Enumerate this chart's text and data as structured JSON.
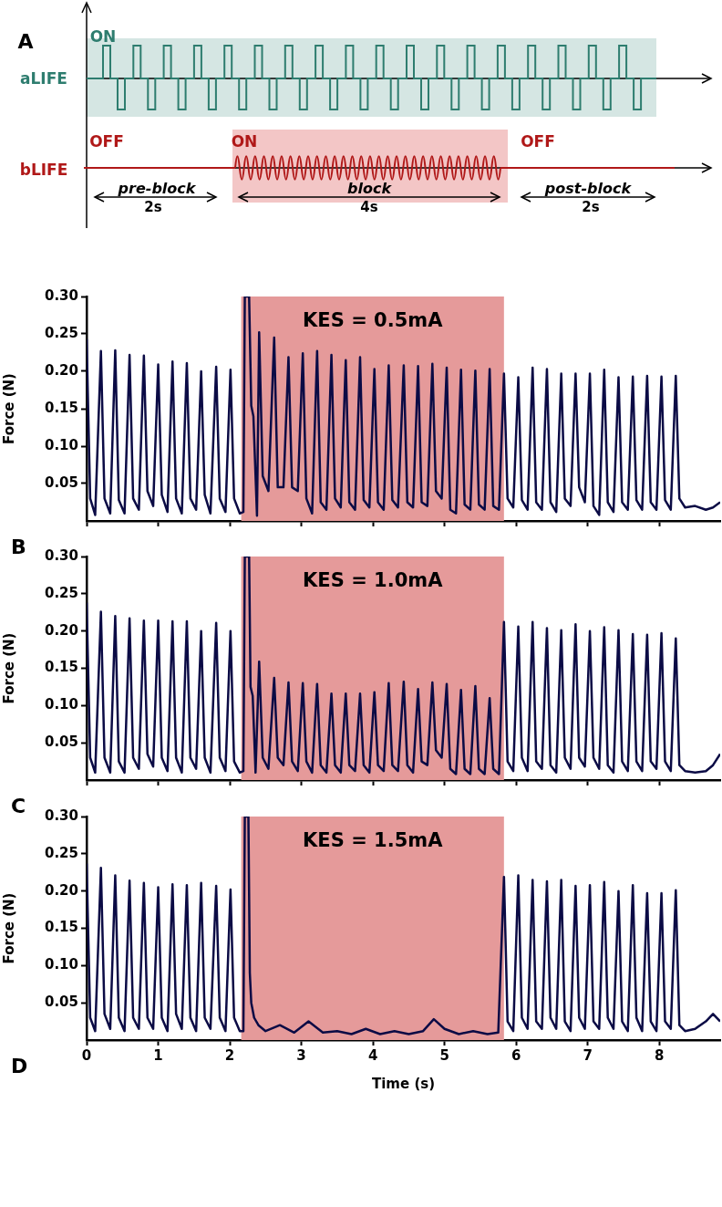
{
  "chart_data": [
    {
      "type": "other",
      "title": "A",
      "annotations": [
        "ON",
        "aLIFE",
        "OFF",
        "ON",
        "OFF",
        "bLIFE",
        "pre-block",
        "2s",
        "block",
        "4s",
        "post-block",
        "2s"
      ]
    },
    {
      "type": "line",
      "title": "B",
      "ylabel": "Force (N)",
      "xlim": [
        0,
        8.85
      ],
      "xticks": [
        0,
        1,
        2,
        3,
        4,
        5,
        6,
        7,
        8
      ],
      "ylim": [
        0,
        0.3
      ],
      "yticks": [
        0.05,
        {
          "value": 0.1,
          "label": "0.10"
        },
        0.15,
        {
          "value": 0.2,
          "label": "0.20"
        },
        0.25,
        {
          "value": 0.3,
          "label": "0.30"
        }
      ],
      "tick_labels": "y",
      "grid": false,
      "legend": false,
      "bands": [
        {
          "axis": "x",
          "from": 2.16,
          "to": 5.83,
          "label": "KES = 0.5mA",
          "color": "#e59a9a"
        }
      ],
      "series": [
        {
          "color": "#0b0b45",
          "x": [
            0,
            0.05,
            0.12,
            0.2,
            0.25,
            0.33,
            0.4,
            0.45,
            0.53,
            0.6,
            0.65,
            0.73,
            0.8,
            0.85,
            0.93,
            1.0,
            1.05,
            1.13,
            1.2,
            1.25,
            1.33,
            1.4,
            1.45,
            1.53,
            1.6,
            1.65,
            1.73,
            1.81,
            1.86,
            1.94,
            2.01,
            2.06,
            2.14,
            2.19,
            2.21,
            2.27,
            2.3,
            2.33,
            2.38,
            2.41,
            2.46,
            2.54,
            2.62,
            2.67,
            2.75,
            2.82,
            2.87,
            2.95,
            3.02,
            3.07,
            3.15,
            3.22,
            3.27,
            3.35,
            3.42,
            3.47,
            3.55,
            3.62,
            3.67,
            3.75,
            3.82,
            3.87,
            3.95,
            4.02,
            4.07,
            4.15,
            4.22,
            4.27,
            4.35,
            4.43,
            4.48,
            4.56,
            4.63,
            4.68,
            4.76,
            4.83,
            4.88,
            4.96,
            5.03,
            5.08,
            5.16,
            5.23,
            5.28,
            5.36,
            5.43,
            5.48,
            5.56,
            5.63,
            5.68,
            5.76,
            5.83,
            5.88,
            5.96,
            6.03,
            6.08,
            6.16,
            6.23,
            6.28,
            6.36,
            6.43,
            6.48,
            6.56,
            6.63,
            6.68,
            6.76,
            6.83,
            6.88,
            6.96,
            7.03,
            7.08,
            7.16,
            7.23,
            7.28,
            7.36,
            7.43,
            7.48,
            7.56,
            7.63,
            7.68,
            7.76,
            7.83,
            7.88,
            7.96,
            8.03,
            8.08,
            8.16,
            8.23,
            8.28,
            8.36,
            8.5,
            8.65,
            8.75,
            8.85
          ],
          "values": [
            0.243,
            0.03,
            0.008,
            0.227,
            0.03,
            0.01,
            0.228,
            0.028,
            0.01,
            0.222,
            0.03,
            0.015,
            0.221,
            0.04,
            0.02,
            0.209,
            0.035,
            0.012,
            0.213,
            0.03,
            0.01,
            0.211,
            0.03,
            0.015,
            0.2,
            0.035,
            0.01,
            0.206,
            0.03,
            0.012,
            0.202,
            0.03,
            0.01,
            0.012,
            0.3,
            0.3,
            0.154,
            0.14,
            0.007,
            0.252,
            0.06,
            0.04,
            0.245,
            0.045,
            0.045,
            0.219,
            0.045,
            0.04,
            0.224,
            0.03,
            0.01,
            0.227,
            0.025,
            0.015,
            0.222,
            0.03,
            0.018,
            0.215,
            0.025,
            0.015,
            0.219,
            0.028,
            0.018,
            0.203,
            0.025,
            0.015,
            0.208,
            0.028,
            0.018,
            0.208,
            0.025,
            0.018,
            0.207,
            0.025,
            0.02,
            0.21,
            0.04,
            0.03,
            0.205,
            0.015,
            0.01,
            0.202,
            0.022,
            0.015,
            0.201,
            0.022,
            0.015,
            0.203,
            0.02,
            0.015,
            0.197,
            0.03,
            0.018,
            0.192,
            0.028,
            0.015,
            0.205,
            0.025,
            0.015,
            0.203,
            0.025,
            0.012,
            0.197,
            0.03,
            0.02,
            0.197,
            0.045,
            0.025,
            0.197,
            0.02,
            0.008,
            0.202,
            0.025,
            0.012,
            0.192,
            0.025,
            0.015,
            0.193,
            0.028,
            0.015,
            0.194,
            0.025,
            0.015,
            0.193,
            0.028,
            0.015,
            0.194,
            0.03,
            0.018,
            0.02,
            0.015,
            0.018,
            0.025
          ]
        }
      ]
    },
    {
      "type": "line",
      "title": "C",
      "ylabel": "Force (N)",
      "xlim": [
        0,
        8.85
      ],
      "xticks": [
        0,
        1,
        2,
        3,
        4,
        5,
        6,
        7,
        8
      ],
      "ylim": [
        0,
        0.3
      ],
      "yticks": [
        0.05,
        {
          "value": 0.1,
          "label": "0.10"
        },
        0.15,
        {
          "value": 0.2,
          "label": "0.20"
        },
        0.25,
        {
          "value": 0.3,
          "label": "0.30"
        }
      ],
      "tick_labels": "y",
      "grid": false,
      "legend": false,
      "bands": [
        {
          "axis": "x",
          "from": 2.16,
          "to": 5.83,
          "label": "KES = 1.0mA",
          "color": "#e59a9a"
        }
      ],
      "series": [
        {
          "color": "#0b0b45",
          "x": [
            0,
            0.05,
            0.12,
            0.2,
            0.25,
            0.33,
            0.4,
            0.45,
            0.53,
            0.6,
            0.65,
            0.73,
            0.8,
            0.85,
            0.93,
            1.0,
            1.05,
            1.13,
            1.2,
            1.25,
            1.33,
            1.4,
            1.45,
            1.53,
            1.6,
            1.65,
            1.73,
            1.81,
            1.86,
            1.94,
            2.01,
            2.06,
            2.14,
            2.19,
            2.21,
            2.27,
            2.29,
            2.32,
            2.36,
            2.41,
            2.46,
            2.54,
            2.62,
            2.67,
            2.75,
            2.82,
            2.87,
            2.95,
            3.02,
            3.07,
            3.15,
            3.22,
            3.27,
            3.35,
            3.42,
            3.47,
            3.55,
            3.62,
            3.67,
            3.75,
            3.82,
            3.87,
            3.95,
            4.02,
            4.07,
            4.15,
            4.22,
            4.27,
            4.35,
            4.43,
            4.48,
            4.56,
            4.63,
            4.68,
            4.76,
            4.83,
            4.88,
            4.96,
            5.03,
            5.08,
            5.16,
            5.23,
            5.28,
            5.36,
            5.43,
            5.48,
            5.56,
            5.63,
            5.68,
            5.76,
            5.83,
            5.88,
            5.96,
            6.03,
            6.08,
            6.16,
            6.23,
            6.28,
            6.36,
            6.43,
            6.48,
            6.56,
            6.63,
            6.68,
            6.76,
            6.83,
            6.88,
            6.96,
            7.03,
            7.08,
            7.16,
            7.23,
            7.28,
            7.36,
            7.43,
            7.48,
            7.56,
            7.63,
            7.68,
            7.76,
            7.83,
            7.88,
            7.96,
            8.03,
            8.08,
            8.16,
            8.23,
            8.28,
            8.36,
            8.5,
            8.65,
            8.75,
            8.85
          ],
          "values": [
            0.238,
            0.03,
            0.01,
            0.226,
            0.03,
            0.01,
            0.22,
            0.025,
            0.01,
            0.217,
            0.03,
            0.015,
            0.214,
            0.035,
            0.018,
            0.214,
            0.03,
            0.012,
            0.213,
            0.03,
            0.01,
            0.213,
            0.03,
            0.015,
            0.2,
            0.03,
            0.01,
            0.211,
            0.03,
            0.012,
            0.2,
            0.025,
            0.01,
            0.012,
            0.3,
            0.3,
            0.125,
            0.113,
            0.01,
            0.159,
            0.03,
            0.015,
            0.137,
            0.03,
            0.02,
            0.131,
            0.025,
            0.012,
            0.13,
            0.025,
            0.01,
            0.129,
            0.02,
            0.01,
            0.116,
            0.02,
            0.01,
            0.116,
            0.02,
            0.012,
            0.116,
            0.02,
            0.01,
            0.118,
            0.02,
            0.012,
            0.13,
            0.02,
            0.012,
            0.132,
            0.02,
            0.01,
            0.122,
            0.025,
            0.02,
            0.131,
            0.04,
            0.03,
            0.129,
            0.015,
            0.008,
            0.121,
            0.015,
            0.008,
            0.126,
            0.015,
            0.008,
            0.11,
            0.015,
            0.008,
            0.212,
            0.025,
            0.012,
            0.206,
            0.03,
            0.012,
            0.212,
            0.025,
            0.015,
            0.204,
            0.02,
            0.01,
            0.201,
            0.03,
            0.015,
            0.209,
            0.03,
            0.018,
            0.2,
            0.03,
            0.015,
            0.205,
            0.02,
            0.01,
            0.201,
            0.025,
            0.012,
            0.196,
            0.025,
            0.012,
            0.195,
            0.025,
            0.015,
            0.197,
            0.025,
            0.012,
            0.19,
            0.02,
            0.012,
            0.01,
            0.012,
            0.02,
            0.035
          ]
        }
      ]
    },
    {
      "type": "line",
      "title": "D",
      "ylabel": "Force (N)",
      "xlabel": "Time (s)",
      "xlim": [
        0,
        8.85
      ],
      "xticks": [
        0,
        1,
        2,
        3,
        4,
        5,
        6,
        7,
        8
      ],
      "ylim": [
        0,
        0.3
      ],
      "yticks": [
        0.05,
        {
          "value": 0.1,
          "label": "0.10"
        },
        0.15,
        {
          "value": 0.2,
          "label": "0.20"
        },
        0.25,
        {
          "value": 0.3,
          "label": "0.30"
        }
      ],
      "grid": false,
      "legend": false,
      "bands": [
        {
          "axis": "x",
          "from": 2.16,
          "to": 5.83,
          "label": "KES = 1.5mA",
          "color": "#e59a9a"
        }
      ],
      "series": [
        {
          "color": "#0b0b45",
          "x": [
            0,
            0.05,
            0.12,
            0.2,
            0.25,
            0.33,
            0.4,
            0.45,
            0.53,
            0.6,
            0.65,
            0.73,
            0.8,
            0.85,
            0.93,
            1.0,
            1.05,
            1.13,
            1.2,
            1.25,
            1.33,
            1.4,
            1.45,
            1.53,
            1.6,
            1.65,
            1.73,
            1.81,
            1.86,
            1.94,
            2.01,
            2.06,
            2.14,
            2.19,
            2.21,
            2.26,
            2.28,
            2.3,
            2.34,
            2.4,
            2.5,
            2.7,
            2.9,
            3.1,
            3.3,
            3.5,
            3.7,
            3.9,
            4.1,
            4.3,
            4.5,
            4.7,
            4.85,
            5.0,
            5.2,
            5.4,
            5.6,
            5.75,
            5.83,
            5.88,
            5.96,
            6.03,
            6.08,
            6.16,
            6.23,
            6.28,
            6.36,
            6.43,
            6.48,
            6.56,
            6.63,
            6.68,
            6.76,
            6.83,
            6.88,
            6.96,
            7.03,
            7.08,
            7.16,
            7.23,
            7.28,
            7.36,
            7.43,
            7.48,
            7.56,
            7.63,
            7.68,
            7.76,
            7.83,
            7.88,
            7.96,
            8.03,
            8.08,
            8.16,
            8.23,
            8.28,
            8.36,
            8.5,
            8.65,
            8.75,
            8.85
          ],
          "values": [
            0.237,
            0.03,
            0.012,
            0.231,
            0.035,
            0.015,
            0.221,
            0.03,
            0.012,
            0.214,
            0.03,
            0.015,
            0.211,
            0.03,
            0.015,
            0.205,
            0.03,
            0.012,
            0.209,
            0.035,
            0.015,
            0.208,
            0.03,
            0.012,
            0.211,
            0.03,
            0.015,
            0.207,
            0.03,
            0.012,
            0.202,
            0.03,
            0.012,
            0.012,
            0.3,
            0.3,
            0.09,
            0.05,
            0.03,
            0.02,
            0.012,
            0.02,
            0.01,
            0.025,
            0.01,
            0.012,
            0.008,
            0.015,
            0.008,
            0.012,
            0.008,
            0.012,
            0.028,
            0.015,
            0.008,
            0.012,
            0.008,
            0.01,
            0.219,
            0.025,
            0.012,
            0.221,
            0.03,
            0.015,
            0.215,
            0.025,
            0.015,
            0.213,
            0.03,
            0.015,
            0.215,
            0.025,
            0.012,
            0.207,
            0.03,
            0.015,
            0.208,
            0.025,
            0.015,
            0.212,
            0.03,
            0.015,
            0.2,
            0.025,
            0.012,
            0.208,
            0.03,
            0.012,
            0.197,
            0.025,
            0.012,
            0.197,
            0.025,
            0.015,
            0.201,
            0.02,
            0.012,
            0.015,
            0.025,
            0.035,
            0.025
          ]
        }
      ]
    }
  ]
}
